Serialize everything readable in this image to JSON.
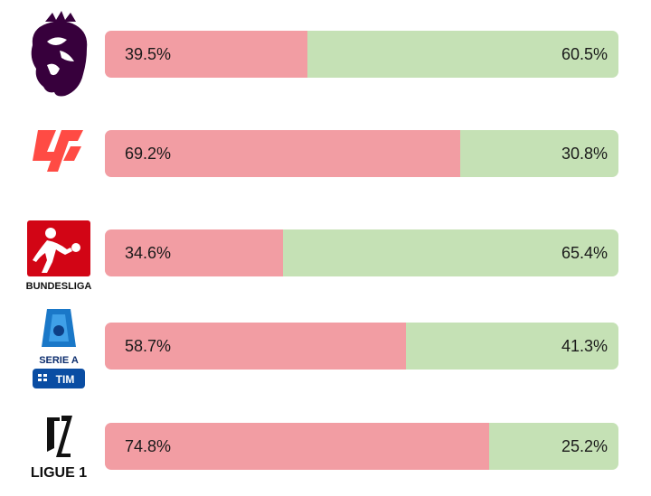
{
  "colors": {
    "share_a": "#f29da3",
    "share_b": "#c5e1b5"
  },
  "chart_data": {
    "type": "bar",
    "orientation": "horizontal",
    "stacked": true,
    "normalized_percent": true,
    "categories": [
      "Premier League",
      "LaLiga",
      "Bundesliga",
      "Serie A",
      "Ligue 1"
    ],
    "series": [
      {
        "color": "#f29da3",
        "values": [
          39.5,
          69.2,
          34.6,
          58.7,
          74.8
        ],
        "labels": [
          "39.5%",
          "69.2%",
          "34.6%",
          "58.7%",
          "74.8%"
        ]
      },
      {
        "color": "#c5e1b5",
        "values": [
          60.5,
          30.8,
          65.4,
          41.3,
          25.2
        ],
        "labels": [
          "60.5%",
          "30.8%",
          "65.4%",
          "41.3%",
          "25.2%"
        ]
      }
    ],
    "xlim": [
      0,
      100
    ],
    "grid": false,
    "legend": "none"
  },
  "logos": [
    {
      "icon": "premier-league-lion-icon",
      "text": ""
    },
    {
      "icon": "laliga-icon",
      "text": ""
    },
    {
      "icon": "bundesliga-icon",
      "text": "BUNDESLIGA"
    },
    {
      "icon": "serie-a-icon",
      "text": "SERIE A",
      "text2": "TIM"
    },
    {
      "icon": "ligue1-icon",
      "text": "LIGUE 1"
    }
  ]
}
